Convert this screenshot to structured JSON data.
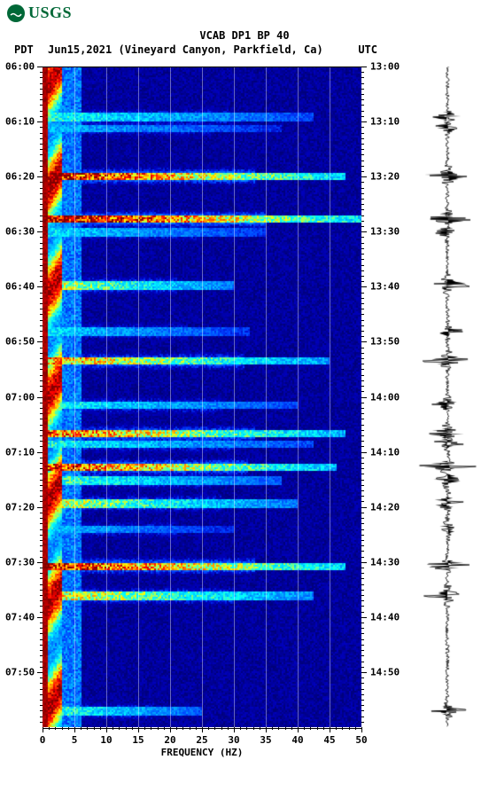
{
  "logo": {
    "text": "USGS"
  },
  "title": "VCAB DP1 BP 40",
  "subtitle": {
    "tz_left": "PDT",
    "date": "Jun15,2021",
    "location": "(Vineyard Canyon, Parkfield, Ca)",
    "tz_right": "UTC"
  },
  "spectrogram": {
    "type": "spectrogram",
    "x_range": [
      0,
      50
    ],
    "x_ticks": [
      0,
      5,
      10,
      15,
      20,
      25,
      30,
      35,
      40,
      45,
      50
    ],
    "x_label": "FREQUENCY (HZ)",
    "y_left_start": "06:00",
    "y_right_start": "13:00",
    "y_step_minutes": 10,
    "y_count": 12,
    "y_left_labels": [
      "06:00",
      "06:10",
      "06:20",
      "06:30",
      "06:40",
      "06:50",
      "07:00",
      "07:10",
      "07:20",
      "07:30",
      "07:40",
      "07:50"
    ],
    "y_right_labels": [
      "13:00",
      "13:10",
      "13:20",
      "13:30",
      "13:40",
      "13:50",
      "14:00",
      "14:10",
      "14:20",
      "14:30",
      "14:40",
      "14:50"
    ],
    "colormap": [
      "#00003f",
      "#000080",
      "#0000c0",
      "#0040ff",
      "#0080ff",
      "#00c0ff",
      "#00ffff",
      "#80ff80",
      "#ffff00",
      "#ff8000",
      "#ff0000",
      "#800000"
    ],
    "background": "#000080",
    "events": [
      {
        "t": 0.075,
        "intensity": 0.55,
        "width": 0.85
      },
      {
        "t": 0.092,
        "intensity": 0.45,
        "width": 0.75
      },
      {
        "t": 0.165,
        "intensity": 0.95,
        "width": 0.95
      },
      {
        "t": 0.23,
        "intensity": 1.0,
        "width": 1.0
      },
      {
        "t": 0.25,
        "intensity": 0.5,
        "width": 0.7
      },
      {
        "t": 0.33,
        "intensity": 0.7,
        "width": 0.6
      },
      {
        "t": 0.4,
        "intensity": 0.5,
        "width": 0.65
      },
      {
        "t": 0.445,
        "intensity": 0.8,
        "width": 0.9
      },
      {
        "t": 0.512,
        "intensity": 0.55,
        "width": 0.8
      },
      {
        "t": 0.555,
        "intensity": 0.85,
        "width": 0.95
      },
      {
        "t": 0.57,
        "intensity": 0.55,
        "width": 0.85
      },
      {
        "t": 0.605,
        "intensity": 0.9,
        "width": 0.92
      },
      {
        "t": 0.625,
        "intensity": 0.6,
        "width": 0.75
      },
      {
        "t": 0.66,
        "intensity": 0.7,
        "width": 0.8
      },
      {
        "t": 0.7,
        "intensity": 0.45,
        "width": 0.6
      },
      {
        "t": 0.755,
        "intensity": 0.95,
        "width": 0.95
      },
      {
        "t": 0.8,
        "intensity": 0.75,
        "width": 0.85
      },
      {
        "t": 0.975,
        "intensity": 0.6,
        "width": 0.5
      }
    ]
  },
  "trace": {
    "color": "#000000",
    "baseline_jitter": 0.06
  }
}
